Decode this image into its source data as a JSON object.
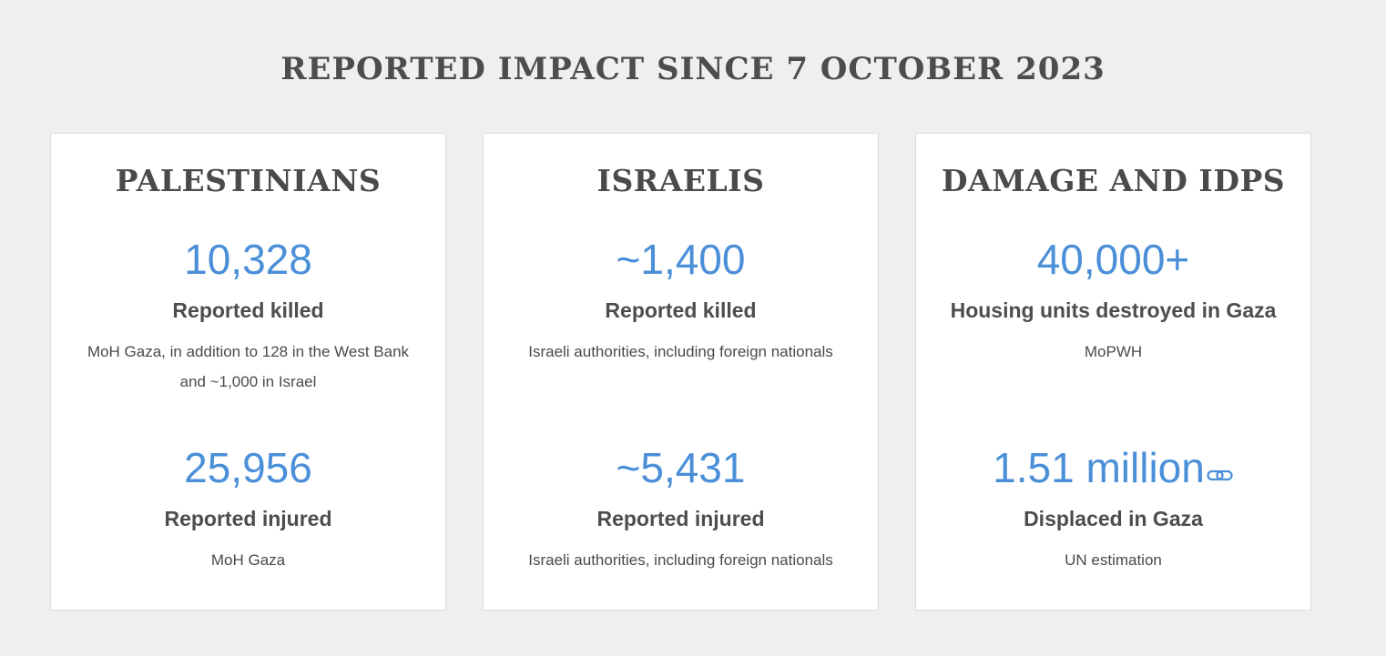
{
  "page": {
    "title": "REPORTED IMPACT SINCE 7 OCTOBER 2023"
  },
  "cards": [
    {
      "heading": "PALESTINIANS",
      "stats": [
        {
          "value": "10,328",
          "label": "Reported killed",
          "source": "MoH Gaza, in addition to 128 in the West Bank and ~1,000 in Israel"
        },
        {
          "value": "25,956",
          "label": "Reported injured",
          "source": "MoH Gaza"
        }
      ]
    },
    {
      "heading": "ISRAELIS",
      "stats": [
        {
          "value": "~1,400",
          "label": "Reported killed",
          "source": "Israeli authorities, including foreign nationals"
        },
        {
          "value": "~5,431",
          "label": "Reported injured",
          "source": "Israeli authorities, including foreign nationals"
        }
      ]
    },
    {
      "heading": "DAMAGE AND IDPS",
      "stats": [
        {
          "value": "40,000+",
          "label": "Housing units destroyed in Gaza",
          "source": "MoPWH"
        },
        {
          "value": "1.51 million",
          "label": "Displaced in Gaza",
          "source": "UN estimation",
          "icon": "link-icon"
        }
      ]
    }
  ],
  "colors": {
    "accent": "#4a8fd8",
    "text": "#4a4a4a",
    "background": "#efefef",
    "card": "#ffffff"
  }
}
